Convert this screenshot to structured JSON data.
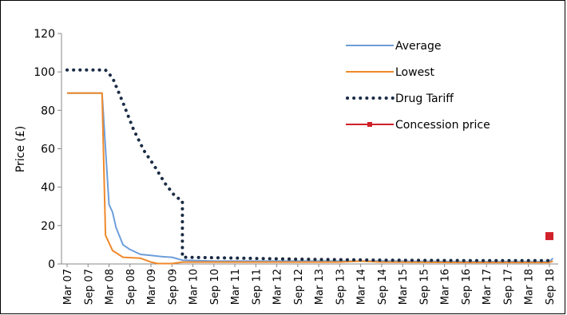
{
  "chart_data": {
    "type": "line",
    "title": "",
    "xlabel": "",
    "ylabel": "Price (£)",
    "ylim": [
      0,
      120
    ],
    "yticks": [
      0,
      20,
      40,
      60,
      80,
      100,
      120
    ],
    "grid": false,
    "legend_position": "top-right",
    "x_tick_labels": [
      "Mar 07",
      "Sep 07",
      "Mar 08",
      "Sep 08",
      "Mar 09",
      "Sep 09",
      "Mar 10",
      "Sep 10",
      "Mar 11",
      "Sep 11",
      "Mar 12",
      "Sep 12",
      "Mar 13",
      "Sep 13",
      "Mar 14",
      "Sep 14",
      "Mar 15",
      "Sep 15",
      "Mar 16",
      "Sep 16",
      "Mar 17",
      "Sep 17",
      "Mar 18",
      "Sep 18"
    ],
    "x_range": [
      "Mar 07",
      "Sep 18"
    ],
    "series": [
      {
        "name": "Average",
        "style": "solid",
        "color": "#6d9eda",
        "points": [
          [
            "Mar 07",
            89
          ],
          [
            "Sep 07",
            89
          ],
          [
            "Jan 08",
            89
          ],
          [
            "Mar 08",
            31
          ],
          [
            "Apr 08",
            27
          ],
          [
            "May 08",
            19
          ],
          [
            "Jul 08",
            10
          ],
          [
            "Sep 08",
            7.5
          ],
          [
            "Dec 08",
            5
          ],
          [
            "Mar 09",
            4.5
          ],
          [
            "Jun 09",
            3.8
          ],
          [
            "Sep 09",
            3.5
          ],
          [
            "Dec 09",
            2
          ],
          [
            "Sep 10",
            1.5
          ],
          [
            "Sep 12",
            1.5
          ],
          [
            "Sep 14",
            1.5
          ],
          [
            "Sep 16",
            1.2
          ],
          [
            "Sep 18",
            1.2
          ],
          [
            "Oct 18",
            3
          ]
        ]
      },
      {
        "name": "Lowest",
        "style": "solid",
        "color": "#f0892a",
        "points": [
          [
            "Mar 07",
            89
          ],
          [
            "Sep 07",
            89
          ],
          [
            "Jan 08",
            89
          ],
          [
            "Feb 08",
            15
          ],
          [
            "Apr 08",
            7
          ],
          [
            "Jul 08",
            3.5
          ],
          [
            "Dec 08",
            3
          ],
          [
            "Mar 09",
            1
          ],
          [
            "May 09",
            0.2
          ],
          [
            "Sep 09",
            0.2
          ],
          [
            "Dec 09",
            1
          ],
          [
            "Sep 10",
            1
          ],
          [
            "Sep 13",
            1
          ],
          [
            "Mar 14",
            1.5
          ],
          [
            "Sep 14",
            1
          ],
          [
            "Sep 16",
            0.8
          ],
          [
            "Sep 18",
            0.8
          ],
          [
            "Oct 18",
            1.5
          ]
        ]
      },
      {
        "name": "Drug Tariff",
        "style": "dotted",
        "color": "#1a2b44",
        "points": [
          [
            "Mar 07",
            101
          ],
          [
            "Sep 07",
            101
          ],
          [
            "Feb 08",
            101
          ],
          [
            "Apr 08",
            97
          ],
          [
            "Jul 08",
            84
          ],
          [
            "Oct 08",
            70
          ],
          [
            "Jan 09",
            59
          ],
          [
            "Apr 09",
            51
          ],
          [
            "Jul 09",
            42
          ],
          [
            "Oct 09",
            35
          ],
          [
            "Dec 09",
            33
          ],
          [
            "Dec 09",
            3.5
          ],
          [
            "Sep 10",
            3.3
          ],
          [
            "Sep 12",
            2.5
          ],
          [
            "Sep 14",
            2
          ],
          [
            "Sep 16",
            1.8
          ],
          [
            "Sep 18",
            1.8
          ],
          [
            "Oct 18",
            2
          ]
        ]
      },
      {
        "name": "Concession price",
        "style": "marker",
        "color": "#d0202a",
        "points": [
          [
            "Sep 18",
            14.5
          ]
        ]
      }
    ]
  }
}
